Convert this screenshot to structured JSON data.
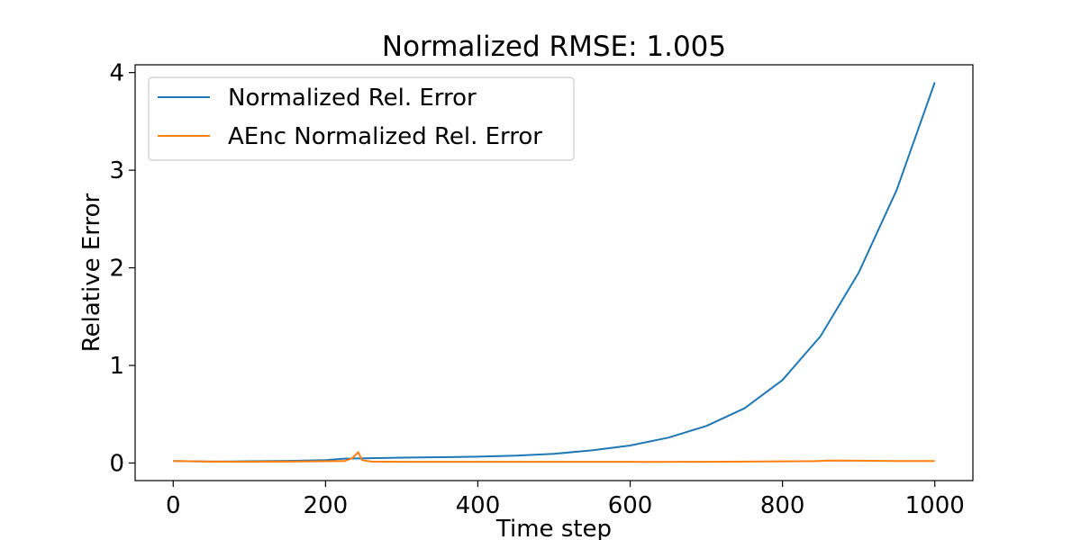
{
  "chart_data": {
    "type": "line",
    "title": "Normalized RMSE: 1.005",
    "xlabel": "Time step",
    "ylabel": "Relative Error",
    "xlim": [
      -50,
      1050
    ],
    "ylim": [
      -0.18,
      4.08
    ],
    "xticks": [
      0,
      200,
      400,
      600,
      800,
      1000
    ],
    "yticks": [
      0,
      1,
      2,
      3,
      4
    ],
    "grid": false,
    "legend_position": "upper-left",
    "series": [
      {
        "name": "Normalized Rel. Error",
        "color": "#1f77b4",
        "x": [
          0,
          50,
          100,
          150,
          200,
          225,
          250,
          300,
          350,
          400,
          450,
          500,
          550,
          600,
          650,
          700,
          750,
          800,
          850,
          900,
          950,
          1000
        ],
        "y": [
          0.02,
          0.015,
          0.018,
          0.022,
          0.03,
          0.045,
          0.048,
          0.055,
          0.06,
          0.065,
          0.075,
          0.095,
          0.13,
          0.18,
          0.26,
          0.38,
          0.56,
          0.85,
          1.3,
          1.95,
          2.8,
          3.9
        ]
      },
      {
        "name": "AEnc Normalized Rel. Error",
        "color": "#ff7f0e",
        "x": [
          0,
          50,
          100,
          150,
          200,
          225,
          235,
          243,
          248,
          260,
          300,
          400,
          500,
          600,
          620,
          700,
          800,
          840,
          860,
          900,
          950,
          1000
        ],
        "y": [
          0.02,
          0.015,
          0.014,
          0.015,
          0.018,
          0.02,
          0.05,
          0.11,
          0.03,
          0.015,
          0.013,
          0.013,
          0.013,
          0.013,
          0.011,
          0.013,
          0.017,
          0.018,
          0.025,
          0.024,
          0.02,
          0.021
        ]
      }
    ]
  }
}
